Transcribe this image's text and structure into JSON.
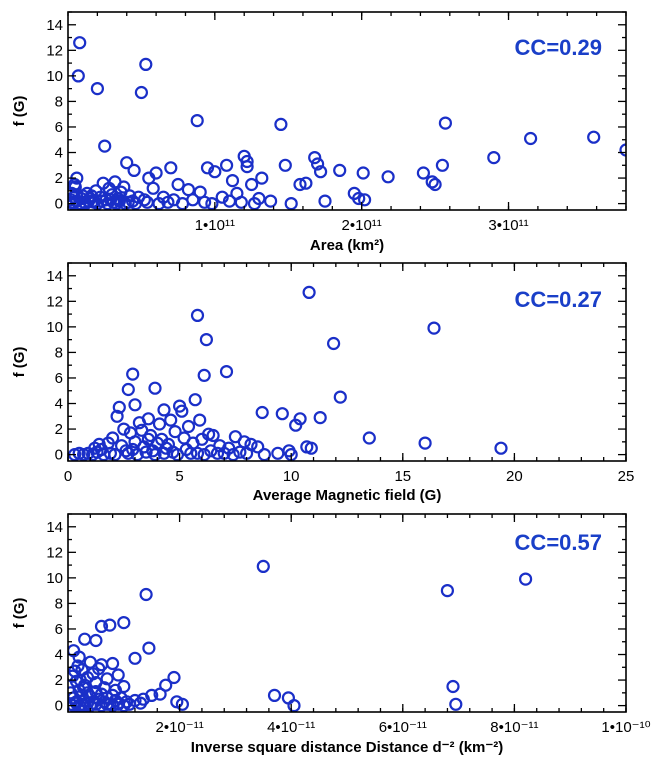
{
  "colors": {
    "marker": "#1a2fc8",
    "annotation": "#1a3fc8",
    "axis": "#000000"
  },
  "chart_data": [
    {
      "type": "scatter",
      "title": "",
      "xlabel": "Area (km²)",
      "ylabel": "f (G)",
      "annotation": "CC=0.29",
      "xlim": [
        0,
        380000000000.0
      ],
      "ylim": [
        -0.5,
        15
      ],
      "x_ticks": [
        100000000000.0,
        200000000000.0,
        300000000000.0
      ],
      "x_tick_labels": [
        "1•10¹¹",
        "2•10¹¹",
        "3•10¹¹"
      ],
      "y_ticks": [
        0,
        2,
        4,
        6,
        8,
        10,
        12,
        14
      ],
      "y_tick_labels": [
        "0",
        "2",
        "4",
        "6",
        "8",
        "10",
        "12",
        "14"
      ],
      "points": [
        [
          8000000000.0,
          12.6
        ],
        [
          7000000000.0,
          10.0
        ],
        [
          20000000000.0,
          9.0
        ],
        [
          53000000000.0,
          10.9
        ],
        [
          50000000000.0,
          8.7
        ],
        [
          88000000000.0,
          6.5
        ],
        [
          145000000000.0,
          6.2
        ],
        [
          257000000000.0,
          6.3
        ],
        [
          315000000000.0,
          5.1
        ],
        [
          358000000000.0,
          5.2
        ],
        [
          380000000000.0,
          4.2
        ],
        [
          25000000000.0,
          4.5
        ],
        [
          40000000000.0,
          3.2
        ],
        [
          95000000000.0,
          2.8
        ],
        [
          120000000000.0,
          3.7
        ],
        [
          122000000000.0,
          3.3
        ],
        [
          122000000000.0,
          2.9
        ],
        [
          148000000000.0,
          3.0
        ],
        [
          168000000000.0,
          3.6
        ],
        [
          170000000000.0,
          3.1
        ],
        [
          172000000000.0,
          2.5
        ],
        [
          255000000000.0,
          3.0
        ],
        [
          290000000000.0,
          3.6
        ],
        [
          100000000000.0,
          2.5
        ],
        [
          108000000000.0,
          3.0
        ],
        [
          112000000000.0,
          1.8
        ],
        [
          125000000000.0,
          1.5
        ],
        [
          132000000000.0,
          2.0
        ],
        [
          158000000000.0,
          1.5
        ],
        [
          162000000000.0,
          1.6
        ],
        [
          185000000000.0,
          2.6
        ],
        [
          201000000000.0,
          2.4
        ],
        [
          218000000000.0,
          2.1
        ],
        [
          242000000000.0,
          2.4
        ],
        [
          248000000000.0,
          1.7
        ],
        [
          250000000000.0,
          1.5
        ],
        [
          195000000000.0,
          0.8
        ],
        [
          198000000000.0,
          0.4
        ],
        [
          202000000000.0,
          0.3
        ],
        [
          175000000000.0,
          0.2
        ],
        [
          115000000000.0,
          0.8
        ],
        [
          110000000000.0,
          0.2
        ],
        [
          130000000000.0,
          0.4
        ],
        [
          70000000000.0,
          2.8
        ],
        [
          60000000000.0,
          2.4
        ],
        [
          55000000000.0,
          2.0
        ],
        [
          45000000000.0,
          2.6
        ],
        [
          32000000000.0,
          1.7
        ],
        [
          38000000000.0,
          1.3
        ],
        [
          75000000000.0,
          1.5
        ],
        [
          82000000000.0,
          1.1
        ],
        [
          90000000000.0,
          0.9
        ],
        [
          65000000000.0,
          0.5
        ],
        [
          72000000000.0,
          0.3
        ],
        [
          58000000000.0,
          1.2
        ],
        [
          5000000000.0,
          1.3
        ],
        [
          6000000000.0,
          2.0
        ],
        [
          10000000000.0,
          0.6
        ],
        [
          13000000000.0,
          0.8
        ],
        [
          15000000000.0,
          0.4
        ],
        [
          17000000000.0,
          0.2
        ],
        [
          19000000000.0,
          1.0
        ],
        [
          22000000000.0,
          0.5
        ],
        [
          24000000000.0,
          1.6
        ],
        [
          26000000000.0,
          0.3
        ],
        [
          28000000000.0,
          1.2
        ],
        [
          30000000000.0,
          0.7
        ],
        [
          34000000000.0,
          0.4
        ],
        [
          36000000000.0,
          0.9
        ],
        [
          42000000000.0,
          0.6
        ],
        [
          44000000000.0,
          0.2
        ],
        [
          48000000000.0,
          0.5
        ],
        [
          52000000000.0,
          0.3
        ],
        [
          3000000000.0,
          0.1
        ],
        [
          4000000000.0,
          0.5
        ],
        [
          6000000000.0,
          0.2
        ],
        [
          8000000000.0,
          0.0
        ],
        [
          9000000000.0,
          0.4
        ],
        [
          11000000000.0,
          0.1
        ],
        [
          12000000000.0,
          0.0
        ],
        [
          14000000000.0,
          0.2
        ],
        [
          16000000000.0,
          0.6
        ],
        [
          18000000000.0,
          0.1
        ],
        [
          20000000000.0,
          0.0
        ],
        [
          23000000000.0,
          0.2
        ],
        [
          27000000000.0,
          0.0
        ],
        [
          29000000000.0,
          0.3
        ],
        [
          31000000000.0,
          0.1
        ],
        [
          33000000000.0,
          0.0
        ],
        [
          35000000000.0,
          0.2
        ],
        [
          39000000000.0,
          0.0
        ],
        [
          41000000000.0,
          0.1
        ],
        [
          46000000000.0,
          0.0
        ],
        [
          54000000000.0,
          0.1
        ],
        [
          62000000000.0,
          0.0
        ],
        [
          68000000000.0,
          0.1
        ],
        [
          78000000000.0,
          0.0
        ],
        [
          85000000000.0,
          0.3
        ],
        [
          93000000000.0,
          0.1
        ],
        [
          98000000000.0,
          0.0
        ],
        [
          105000000000.0,
          0.5
        ],
        [
          118000000000.0,
          0.1
        ],
        [
          127000000000.0,
          0.0
        ],
        [
          138000000000.0,
          0.2
        ],
        [
          152000000000.0,
          0.0
        ],
        [
          2000000000.0,
          0.3
        ],
        [
          2500000000.0,
          0.8
        ],
        [
          3500000000.0,
          0.0
        ],
        [
          4500000000.0,
          1.5
        ],
        [
          5500000000.0,
          0.7
        ]
      ]
    },
    {
      "type": "scatter",
      "title": "",
      "xlabel": "Average Magnetic field (G)",
      "ylabel": "f (G)",
      "annotation": "CC=0.27",
      "xlim": [
        0,
        25
      ],
      "ylim": [
        -0.5,
        15
      ],
      "x_ticks": [
        0,
        5,
        10,
        15,
        20,
        25
      ],
      "x_tick_labels": [
        "0",
        "5",
        "10",
        "15",
        "20",
        "25"
      ],
      "y_ticks": [
        0,
        2,
        4,
        6,
        8,
        10,
        12,
        14
      ],
      "y_tick_labels": [
        "0",
        "2",
        "4",
        "6",
        "8",
        "10",
        "12",
        "14"
      ],
      "points": [
        [
          10.8,
          12.7
        ],
        [
          16.4,
          9.9
        ],
        [
          5.8,
          10.9
        ],
        [
          6.2,
          9.0
        ],
        [
          11.9,
          8.7
        ],
        [
          7.1,
          6.5
        ],
        [
          2.9,
          6.3
        ],
        [
          6.1,
          6.2
        ],
        [
          3.9,
          5.2
        ],
        [
          2.7,
          5.1
        ],
        [
          5.7,
          4.3
        ],
        [
          12.2,
          4.5
        ],
        [
          2.3,
          3.7
        ],
        [
          3.0,
          3.9
        ],
        [
          4.3,
          3.5
        ],
        [
          5.1,
          3.4
        ],
        [
          5.0,
          3.8
        ],
        [
          8.7,
          3.3
        ],
        [
          9.6,
          3.2
        ],
        [
          10.2,
          2.3
        ],
        [
          10.4,
          2.8
        ],
        [
          11.3,
          2.9
        ],
        [
          13.5,
          1.3
        ],
        [
          16.0,
          0.9
        ],
        [
          19.4,
          0.5
        ],
        [
          10.7,
          0.6
        ],
        [
          9.9,
          0.3
        ],
        [
          10.9,
          0.5
        ],
        [
          2.2,
          3.0
        ],
        [
          3.2,
          2.5
        ],
        [
          3.6,
          2.8
        ],
        [
          4.1,
          2.4
        ],
        [
          4.6,
          2.7
        ],
        [
          5.4,
          2.2
        ],
        [
          5.9,
          2.7
        ],
        [
          6.3,
          1.6
        ],
        [
          6.5,
          1.5
        ],
        [
          7.5,
          1.4
        ],
        [
          7.9,
          1.0
        ],
        [
          8.2,
          0.8
        ],
        [
          8.5,
          0.6
        ],
        [
          2.5,
          2.0
        ],
        [
          2.8,
          1.7
        ],
        [
          3.3,
          1.9
        ],
        [
          3.7,
          1.5
        ],
        [
          4.2,
          1.2
        ],
        [
          4.8,
          1.8
        ],
        [
          5.2,
          1.3
        ],
        [
          5.6,
          0.9
        ],
        [
          6.0,
          1.2
        ],
        [
          6.8,
          0.7
        ],
        [
          7.2,
          0.5
        ],
        [
          1.5,
          0.4
        ],
        [
          1.8,
          0.9
        ],
        [
          2.0,
          1.3
        ],
        [
          2.4,
          0.7
        ],
        [
          2.6,
          0.3
        ],
        [
          3.0,
          1.0
        ],
        [
          3.4,
          0.6
        ],
        [
          3.8,
          0.3
        ],
        [
          4.0,
          0.9
        ],
        [
          4.4,
          0.5
        ],
        [
          4.7,
          0.2
        ],
        [
          5.3,
          0.4
        ],
        [
          5.8,
          0.1
        ],
        [
          6.4,
          0.3
        ],
        [
          7.0,
          0.1
        ],
        [
          7.7,
          0.2
        ],
        [
          0.3,
          0.0
        ],
        [
          0.5,
          0.1
        ],
        [
          0.7,
          0.0
        ],
        [
          0.9,
          0.1
        ],
        [
          1.1,
          0.0
        ],
        [
          1.3,
          0.2
        ],
        [
          1.6,
          0.0
        ],
        [
          1.9,
          0.1
        ],
        [
          2.1,
          0.0
        ],
        [
          2.7,
          0.1
        ],
        [
          3.1,
          0.0
        ],
        [
          3.5,
          0.2
        ],
        [
          3.9,
          0.0
        ],
        [
          4.3,
          0.1
        ],
        [
          4.9,
          0.0
        ],
        [
          5.5,
          0.1
        ],
        [
          6.1,
          0.0
        ],
        [
          6.7,
          0.1
        ],
        [
          7.4,
          0.0
        ],
        [
          8.0,
          0.1
        ],
        [
          8.8,
          0.0
        ],
        [
          9.4,
          0.1
        ],
        [
          10.0,
          0.0
        ],
        [
          1.2,
          0.5
        ],
        [
          1.4,
          0.8
        ],
        [
          2.9,
          0.4
        ],
        [
          3.6,
          1.2
        ],
        [
          4.5,
          0.8
        ]
      ]
    },
    {
      "type": "scatter",
      "title": "",
      "xlabel": "Inverse square distance Distance d⁻² (km⁻²)",
      "ylabel": "f (G)",
      "annotation": "CC=0.57",
      "xlim": [
        0,
        1e-10
      ],
      "ylim": [
        -0.5,
        15
      ],
      "x_ticks": [
        2e-11,
        4e-11,
        6e-11,
        8e-11,
        1e-10
      ],
      "x_tick_labels": [
        "2•10⁻¹¹",
        "4•10⁻¹¹",
        "6•10⁻¹¹",
        "8•10⁻¹¹",
        "1•10⁻¹⁰"
      ],
      "y_ticks": [
        0,
        2,
        4,
        6,
        8,
        10,
        12,
        14
      ],
      "y_tick_labels": [
        "0",
        "2",
        "4",
        "6",
        "8",
        "10",
        "12",
        "14"
      ],
      "points": [
        [
          3.5e-11,
          10.9
        ],
        [
          8.2e-11,
          9.9
        ],
        [
          6.8e-11,
          9.0
        ],
        [
          1.4e-11,
          8.7
        ],
        [
          1e-11,
          6.5
        ],
        [
          6e-12,
          6.2
        ],
        [
          7.5e-12,
          6.3
        ],
        [
          3e-12,
          5.2
        ],
        [
          5e-12,
          5.1
        ],
        [
          1.45e-11,
          4.5
        ],
        [
          1e-12,
          4.3
        ],
        [
          1.2e-11,
          3.7
        ],
        [
          2e-12,
          3.8
        ],
        [
          4e-12,
          3.4
        ],
        [
          6e-12,
          3.2
        ],
        [
          8e-12,
          3.3
        ],
        [
          2.5e-12,
          2.8
        ],
        [
          4.5e-12,
          2.5
        ],
        [
          5.5e-12,
          2.9
        ],
        [
          3.5e-12,
          2.2
        ],
        [
          7e-12,
          2.1
        ],
        [
          9e-12,
          2.4
        ],
        [
          1.5e-12,
          1.9
        ],
        [
          3e-12,
          1.6
        ],
        [
          5e-12,
          1.8
        ],
        [
          6.5e-12,
          1.4
        ],
        [
          8.5e-12,
          1.2
        ],
        [
          1e-11,
          1.5
        ],
        [
          1.9e-11,
          2.2
        ],
        [
          1.75e-11,
          1.6
        ],
        [
          1.65e-11,
          0.9
        ],
        [
          1.5e-11,
          0.8
        ],
        [
          1.35e-11,
          0.5
        ],
        [
          1.95e-11,
          0.3
        ],
        [
          2.05e-11,
          0.1
        ],
        [
          3.7e-11,
          0.8
        ],
        [
          3.95e-11,
          0.6
        ],
        [
          4.05e-11,
          0.0
        ],
        [
          6.9e-11,
          1.5
        ],
        [
          6.95e-11,
          0.1
        ],
        [
          5e-13,
          1.0
        ],
        [
          1e-12,
          0.6
        ],
        [
          1.5e-12,
          0.3
        ],
        [
          2e-12,
          1.2
        ],
        [
          2.5e-12,
          0.8
        ],
        [
          3e-12,
          0.4
        ],
        [
          3.5e-12,
          1.0
        ],
        [
          4e-12,
          0.7
        ],
        [
          4.5e-12,
          0.2
        ],
        [
          5e-12,
          1.1
        ],
        [
          5.5e-12,
          0.5
        ],
        [
          6e-12,
          0.9
        ],
        [
          6.5e-12,
          0.3
        ],
        [
          7e-12,
          0.6
        ],
        [
          7.5e-12,
          0.1
        ],
        [
          8e-12,
          0.8
        ],
        [
          8.5e-12,
          0.4
        ],
        [
          9e-12,
          0.2
        ],
        [
          9.5e-12,
          0.6
        ],
        [
          1.05e-11,
          0.3
        ],
        [
          1.1e-11,
          0.1
        ],
        [
          1.2e-11,
          0.4
        ],
        [
          1.3e-11,
          0.2
        ],
        [
          5e-13,
          0.1
        ],
        [
          1e-12,
          0.0
        ],
        [
          1.5e-12,
          0.2
        ],
        [
          2e-12,
          0.0
        ],
        [
          2.5e-12,
          0.1
        ],
        [
          3e-12,
          0.0
        ],
        [
          3.5e-12,
          0.2
        ],
        [
          4e-12,
          0.0
        ],
        [
          5e-12,
          0.1
        ],
        [
          6e-12,
          0.0
        ],
        [
          7e-12,
          0.1
        ],
        [
          8e-12,
          0.0
        ],
        [
          9e-12,
          0.1
        ],
        [
          1e-11,
          0.0
        ],
        [
          8e-13,
          2.3
        ],
        [
          1.2e-12,
          2.7
        ],
        [
          1.8e-12,
          3.1
        ],
        [
          2.2e-12,
          2.0
        ],
        [
          2.8e-12,
          1.4
        ]
      ]
    }
  ]
}
